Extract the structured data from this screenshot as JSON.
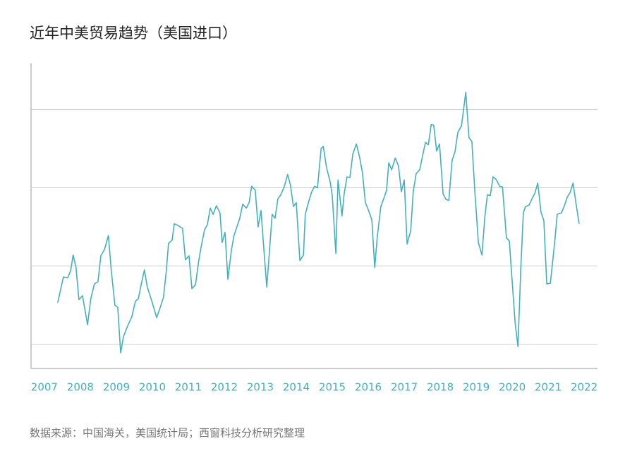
{
  "chart_data": {
    "type": "line",
    "title": "近年中美贸易趋势（美国进口）",
    "source": "数据来源：中国海关，美国统计局；西窗科技分析研究整理",
    "color": "#45b0bc",
    "grid": true,
    "ytick_labels": false,
    "xlim": [
      2006.63,
      2022.37
    ],
    "xticks": [
      2007,
      2008,
      2009,
      2010,
      2011,
      2012,
      2013,
      2014,
      2015,
      2016,
      2017,
      2018,
      2019,
      2020,
      2021,
      2022
    ],
    "ylim": [
      6.9,
      45.9
    ],
    "yticks": [
      10,
      20,
      30,
      40
    ],
    "x": [
      2007.37,
      2007.53,
      2007.65,
      2007.73,
      2007.8,
      2007.88,
      2007.96,
      2008.06,
      2008.2,
      2008.29,
      2008.39,
      2008.49,
      2008.57,
      2008.67,
      2008.78,
      2008.86,
      2008.96,
      2009.04,
      2009.12,
      2009.2,
      2009.31,
      2009.43,
      2009.53,
      2009.61,
      2009.69,
      2009.78,
      2009.86,
      2009.98,
      2010.12,
      2010.22,
      2010.31,
      2010.39,
      2010.45,
      2010.55,
      2010.61,
      2010.71,
      2010.84,
      2010.92,
      2011.02,
      2011.1,
      2011.2,
      2011.29,
      2011.35,
      2011.45,
      2011.53,
      2011.61,
      2011.69,
      2011.78,
      2011.88,
      2011.94,
      2012.02,
      2012.1,
      2012.2,
      2012.27,
      2012.35,
      2012.43,
      2012.51,
      2012.61,
      2012.69,
      2012.76,
      2012.86,
      2012.94,
      2013.02,
      2013.1,
      2013.18,
      2013.25,
      2013.33,
      2013.41,
      2013.49,
      2013.57,
      2013.67,
      2013.76,
      2013.84,
      2013.92,
      2014.0,
      2014.1,
      2014.2,
      2014.25,
      2014.33,
      2014.43,
      2014.51,
      2014.59,
      2014.69,
      2014.75,
      2014.84,
      2014.94,
      2015.0,
      2015.1,
      2015.16,
      2015.27,
      2015.33,
      2015.41,
      2015.49,
      2015.57,
      2015.67,
      2015.76,
      2015.84,
      2015.92,
      2016.0,
      2016.1,
      2016.18,
      2016.25,
      2016.35,
      2016.43,
      2016.51,
      2016.57,
      2016.65,
      2016.75,
      2016.84,
      2016.92,
      2017.0,
      2017.08,
      2017.18,
      2017.25,
      2017.33,
      2017.43,
      2017.51,
      2017.59,
      2017.67,
      2017.75,
      2017.82,
      2017.9,
      2017.98,
      2018.08,
      2018.16,
      2018.24,
      2018.33,
      2018.41,
      2018.49,
      2018.59,
      2018.71,
      2018.8,
      2018.88,
      2018.96,
      2019.06,
      2019.16,
      2019.24,
      2019.31,
      2019.39,
      2019.47,
      2019.55,
      2019.65,
      2019.73,
      2019.84,
      2019.92,
      2020.08,
      2020.16,
      2020.24,
      2020.31,
      2020.37,
      2020.47,
      2020.55,
      2020.63,
      2020.71,
      2020.8,
      2020.88,
      2020.96,
      2021.06,
      2021.18,
      2021.25,
      2021.37,
      2021.45,
      2021.53,
      2021.61,
      2021.69,
      2021.78,
      2021.86
    ],
    "values": [
      15.3,
      18.6,
      18.5,
      19.4,
      21.4,
      19.8,
      15.7,
      16.2,
      12.5,
      15.8,
      17.7,
      18.0,
      21.3,
      22.1,
      23.9,
      19.4,
      15.0,
      14.7,
      8.9,
      11.0,
      12.3,
      13.5,
      15.5,
      15.8,
      17.6,
      19.5,
      17.3,
      15.6,
      13.4,
      14.7,
      16.0,
      19.4,
      22.9,
      23.3,
      25.4,
      25.2,
      24.8,
      20.8,
      21.3,
      17.1,
      17.6,
      20.7,
      22.3,
      24.6,
      25.3,
      27.4,
      26.6,
      27.7,
      26.8,
      23.0,
      24.3,
      18.3,
      22.1,
      23.9,
      25.0,
      26.1,
      27.9,
      27.4,
      28.1,
      30.2,
      29.7,
      25.0,
      27.1,
      22.1,
      17.3,
      21.6,
      26.6,
      26.1,
      28.6,
      29.1,
      30.2,
      31.7,
      30.3,
      27.6,
      28.1,
      20.7,
      21.4,
      26.6,
      28.0,
      29.5,
      30.2,
      30.0,
      35.0,
      35.3,
      32.6,
      30.8,
      29.0,
      21.6,
      31.0,
      26.4,
      29.2,
      31.4,
      31.3,
      34.3,
      35.6,
      33.9,
      31.9,
      28.1,
      27.2,
      25.9,
      19.8,
      23.7,
      27.6,
      28.6,
      29.7,
      33.2,
      32.3,
      33.8,
      32.8,
      29.5,
      31.0,
      22.8,
      24.5,
      29.5,
      31.8,
      32.3,
      34.1,
      35.8,
      35.5,
      38.1,
      38.0,
      34.7,
      35.6,
      29.2,
      28.5,
      28.4,
      33.5,
      34.6,
      37.1,
      37.9,
      42.2,
      36.4,
      35.9,
      29.7,
      23.0,
      21.4,
      26.3,
      29.1,
      29.0,
      31.4,
      31.1,
      30.2,
      30.1,
      23.6,
      23.2,
      12.8,
      9.7,
      19.8,
      26.8,
      27.6,
      27.8,
      28.6,
      29.3,
      30.6,
      26.9,
      25.8,
      17.7,
      17.8,
      23.0,
      26.6,
      26.8,
      27.7,
      28.8,
      29.4,
      30.6,
      27.8,
      25.4
    ]
  }
}
